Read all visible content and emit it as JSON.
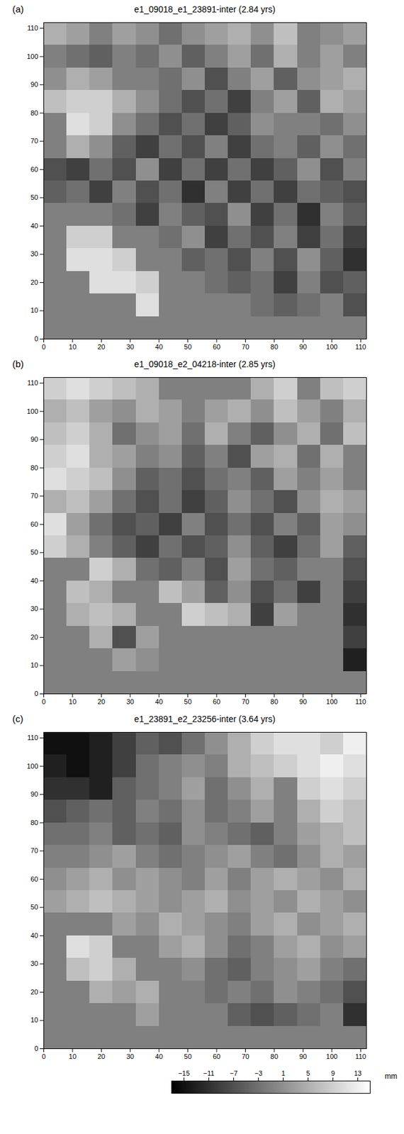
{
  "chart_data": [
    {
      "type": "heatmap",
      "panel": "(a)",
      "title": "e1_09018_e1_23891-inter  (2.84 yrs)",
      "xlim": [
        0,
        112
      ],
      "ylim": [
        0,
        112
      ],
      "xticks": [
        0,
        10,
        20,
        30,
        40,
        50,
        60,
        70,
        80,
        90,
        100,
        110
      ],
      "yticks": [
        0,
        10,
        20,
        30,
        40,
        50,
        60,
        70,
        80,
        90,
        100,
        110
      ],
      "x_bins": [
        0,
        8,
        16,
        24,
        32,
        40,
        48,
        56,
        64,
        72,
        80,
        88,
        96,
        104,
        112
      ],
      "y_bins": [
        112,
        104,
        96,
        88,
        80,
        72,
        64,
        56,
        48,
        40,
        32,
        24,
        16,
        8,
        0
      ],
      "values": [
        [
          5,
          3,
          -1,
          3,
          1,
          -3,
          1,
          3,
          5,
          1,
          7,
          null,
          1,
          3
        ],
        [
          null,
          -3,
          -5,
          -1,
          -3,
          1,
          -5,
          -1,
          3,
          -3,
          5,
          null,
          3,
          -1
        ],
        [
          1,
          5,
          3,
          -1,
          null,
          -3,
          1,
          -7,
          -1,
          3,
          -5,
          1,
          3,
          5
        ],
        [
          7,
          9,
          9,
          5,
          1,
          -3,
          -7,
          -3,
          -9,
          -1,
          3,
          -5,
          5,
          3
        ],
        [
          null,
          11,
          9,
          1,
          -3,
          -7,
          -3,
          -9,
          -5,
          1,
          null,
          null,
          -3,
          1
        ],
        [
          null,
          5,
          1,
          -5,
          -9,
          -3,
          -7,
          -1,
          -9,
          -3,
          null,
          -5,
          1,
          -3
        ],
        [
          -7,
          -9,
          -3,
          -7,
          1,
          -9,
          -3,
          -9,
          -3,
          -9,
          -5,
          1,
          -7,
          -1
        ],
        [
          -5,
          -3,
          -9,
          -1,
          -7,
          -3,
          -11,
          -1,
          -9,
          -3,
          -9,
          -3,
          -5,
          -7
        ],
        [
          null,
          null,
          null,
          -3,
          -9,
          -1,
          -5,
          -7,
          1,
          -9,
          -3,
          -11,
          -1,
          -5
        ],
        [
          null,
          9,
          9,
          null,
          null,
          -3,
          1,
          -9,
          -3,
          -7,
          -1,
          -9,
          -3,
          -9
        ],
        [
          null,
          11,
          11,
          9,
          null,
          null,
          -5,
          -3,
          -7,
          -1,
          -7,
          1,
          -5,
          -11
        ],
        [
          null,
          null,
          11,
          11,
          9,
          null,
          null,
          -3,
          -5,
          -3,
          -9,
          -1,
          -7,
          -5
        ],
        [
          null,
          null,
          null,
          null,
          11,
          null,
          null,
          null,
          null,
          -3,
          -5,
          -3,
          -1,
          -7
        ],
        [
          null,
          null,
          null,
          null,
          null,
          null,
          null,
          null,
          null,
          null,
          null,
          null,
          null,
          null
        ]
      ]
    },
    {
      "type": "heatmap",
      "panel": "(b)",
      "title": "e1_09018_e2_04218-inter  (2.85 yrs)",
      "xlim": [
        0,
        112
      ],
      "ylim": [
        0,
        112
      ],
      "xticks": [
        0,
        10,
        20,
        30,
        40,
        50,
        60,
        70,
        80,
        90,
        100,
        110
      ],
      "yticks": [
        0,
        10,
        20,
        30,
        40,
        50,
        60,
        70,
        80,
        90,
        100,
        110
      ],
      "x_bins": [
        0,
        8,
        16,
        24,
        32,
        40,
        48,
        56,
        64,
        72,
        80,
        88,
        96,
        104,
        112
      ],
      "y_bins": [
        112,
        104,
        96,
        88,
        80,
        72,
        64,
        56,
        48,
        40,
        32,
        24,
        16,
        8,
        0
      ],
      "values": [
        [
          9,
          11,
          9,
          7,
          5,
          null,
          null,
          null,
          null,
          5,
          9,
          null,
          7,
          9
        ],
        [
          5,
          7,
          3,
          1,
          5,
          3,
          -1,
          3,
          5,
          1,
          7,
          3,
          -1,
          5
        ],
        [
          7,
          9,
          5,
          -3,
          1,
          3,
          -3,
          5,
          -1,
          -5,
          1,
          5,
          -3,
          7
        ],
        [
          9,
          11,
          5,
          3,
          -1,
          1,
          -5,
          -1,
          -7,
          3,
          5,
          -3,
          5,
          null
        ],
        [
          11,
          9,
          7,
          1,
          -5,
          -3,
          -7,
          -3,
          -1,
          -5,
          3,
          -1,
          3,
          null
        ],
        [
          5,
          7,
          3,
          -3,
          -7,
          -3,
          -9,
          -5,
          1,
          -3,
          -7,
          1,
          5,
          3
        ],
        [
          11,
          3,
          -3,
          -7,
          -5,
          -9,
          -1,
          -7,
          -3,
          -7,
          -1,
          -5,
          3,
          1
        ],
        [
          9,
          5,
          -1,
          -5,
          -9,
          -3,
          -7,
          -5,
          1,
          -5,
          -9,
          -3,
          3,
          -5
        ],
        [
          null,
          null,
          9,
          5,
          -3,
          -5,
          -1,
          -7,
          3,
          -3,
          -5,
          -1,
          null,
          -7
        ],
        [
          null,
          7,
          5,
          null,
          null,
          7,
          3,
          -5,
          1,
          -7,
          -3,
          -9,
          null,
          -9
        ],
        [
          null,
          5,
          7,
          5,
          null,
          null,
          9,
          7,
          5,
          -9,
          3,
          null,
          null,
          -11
        ],
        [
          null,
          null,
          5,
          -7,
          3,
          null,
          null,
          null,
          null,
          null,
          null,
          null,
          null,
          -9
        ],
        [
          null,
          null,
          null,
          3,
          1,
          null,
          null,
          null,
          null,
          null,
          null,
          null,
          null,
          -13
        ],
        [
          null,
          null,
          null,
          null,
          null,
          null,
          null,
          null,
          null,
          null,
          null,
          null,
          null,
          null
        ]
      ]
    },
    {
      "type": "heatmap",
      "panel": "(c)",
      "title": "e1_23891_e2_23256-inter  (3.64 yrs)",
      "xlim": [
        0,
        112
      ],
      "ylim": [
        0,
        112
      ],
      "xticks": [
        0,
        10,
        20,
        30,
        40,
        50,
        60,
        70,
        80,
        90,
        100,
        110
      ],
      "yticks": [
        0,
        10,
        20,
        30,
        40,
        50,
        60,
        70,
        80,
        90,
        100,
        110
      ],
      "x_bins": [
        0,
        8,
        16,
        24,
        32,
        40,
        48,
        56,
        64,
        72,
        80,
        88,
        96,
        104,
        112
      ],
      "y_bins": [
        112,
        104,
        96,
        88,
        80,
        72,
        64,
        56,
        48,
        40,
        32,
        24,
        16,
        8,
        0
      ],
      "values": [
        [
          -15,
          -15,
          -13,
          -9,
          -5,
          -7,
          -3,
          1,
          5,
          9,
          11,
          11,
          9,
          13
        ],
        [
          -13,
          -15,
          -13,
          -9,
          -3,
          null,
          1,
          -1,
          5,
          7,
          9,
          11,
          13,
          11
        ],
        [
          -11,
          -11,
          -13,
          -5,
          -3,
          -1,
          3,
          -3,
          1,
          5,
          null,
          9,
          11,
          9
        ],
        [
          -7,
          -5,
          -3,
          -5,
          -1,
          -3,
          1,
          -3,
          -1,
          3,
          null,
          5,
          9,
          7
        ],
        [
          -3,
          -3,
          -1,
          -5,
          -3,
          -5,
          1,
          -1,
          -3,
          -5,
          -1,
          3,
          5,
          7
        ],
        [
          null,
          -1,
          1,
          3,
          -1,
          -3,
          null,
          1,
          3,
          -1,
          -3,
          1,
          5,
          3
        ],
        [
          1,
          3,
          5,
          1,
          3,
          1,
          null,
          3,
          -1,
          3,
          5,
          3,
          1,
          5
        ],
        [
          3,
          5,
          7,
          5,
          3,
          1,
          3,
          5,
          1,
          3,
          1,
          5,
          3,
          1
        ],
        [
          null,
          null,
          null,
          3,
          1,
          5,
          3,
          1,
          -1,
          3,
          5,
          1,
          3,
          5
        ],
        [
          null,
          11,
          9,
          null,
          null,
          3,
          5,
          1,
          -3,
          -1,
          3,
          5,
          1,
          3
        ],
        [
          null,
          7,
          9,
          5,
          null,
          null,
          1,
          -3,
          -5,
          -1,
          1,
          3,
          -1,
          -3
        ],
        [
          null,
          null,
          5,
          3,
          5,
          null,
          null,
          -3,
          -1,
          -3,
          1,
          -1,
          -3,
          -7
        ],
        [
          null,
          null,
          null,
          null,
          3,
          null,
          null,
          null,
          -5,
          -7,
          -5,
          -3,
          -1,
          -11
        ],
        [
          null,
          null,
          null,
          null,
          null,
          null,
          null,
          null,
          null,
          null,
          null,
          null,
          null,
          null
        ]
      ]
    }
  ],
  "colorbar": {
    "range": [
      -17,
      15
    ],
    "ticks": [
      -15,
      -11,
      -7,
      -3,
      1,
      5,
      9,
      13
    ],
    "label": "mm"
  }
}
